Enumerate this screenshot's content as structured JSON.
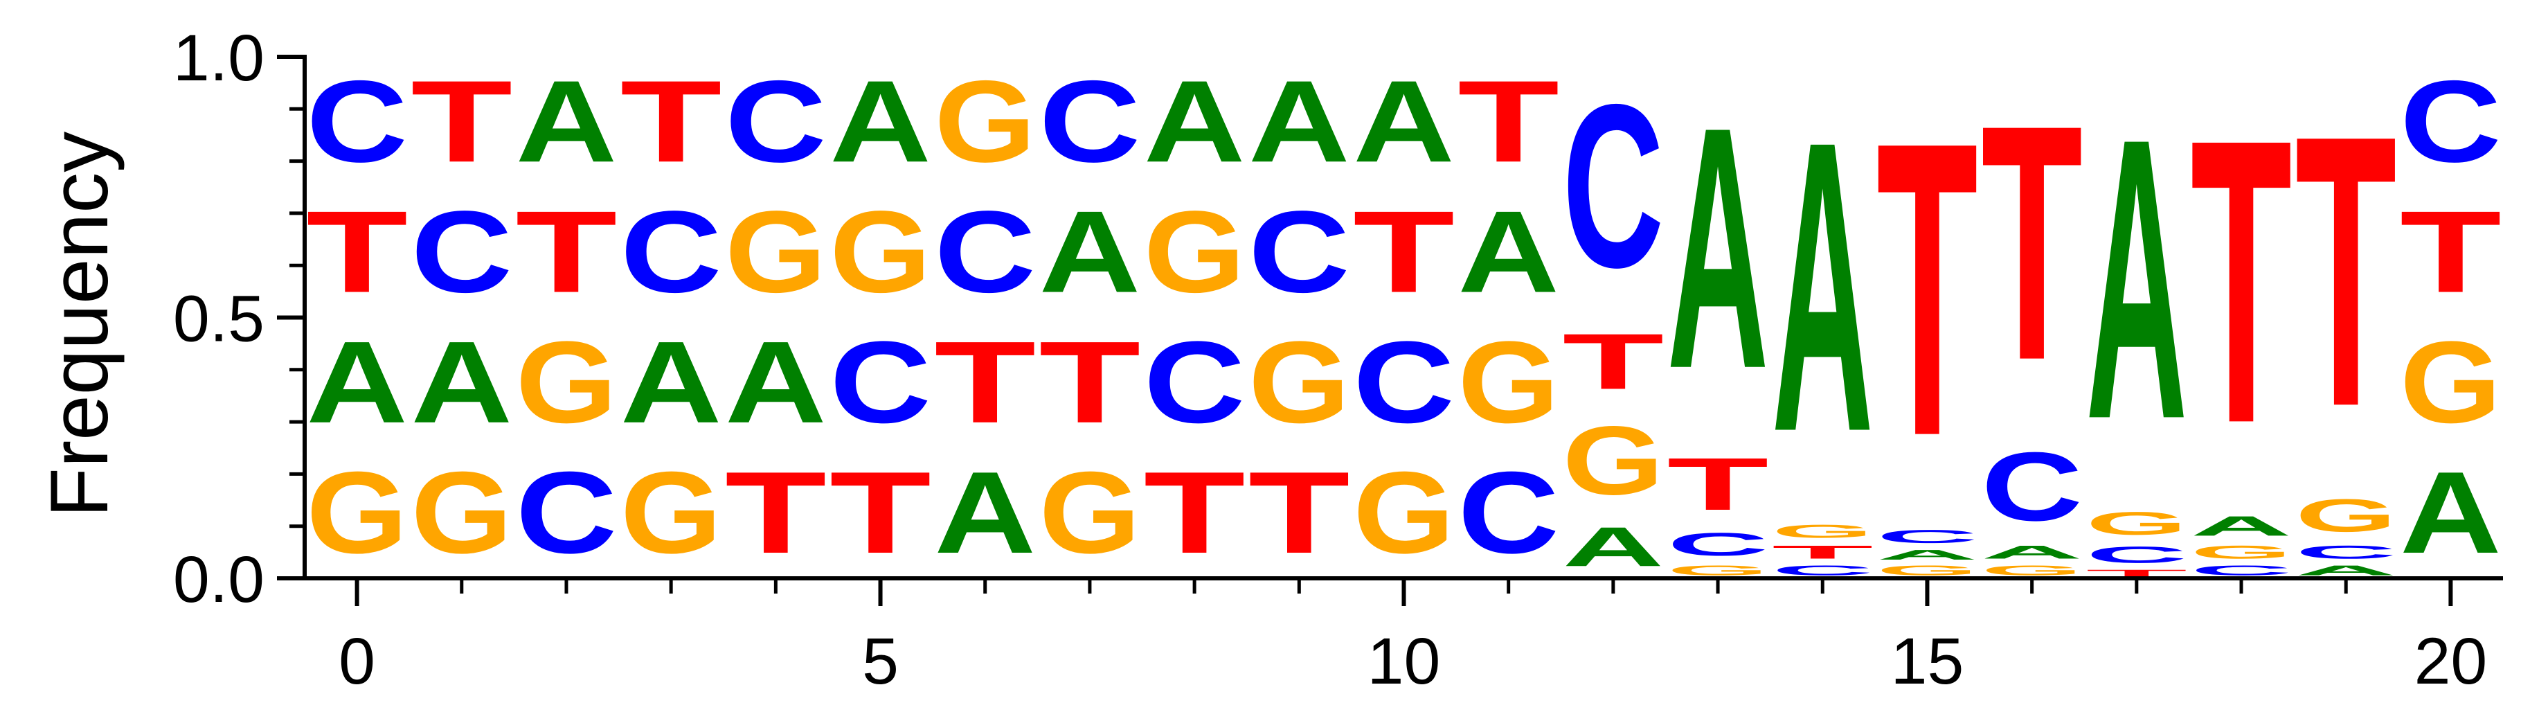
{
  "chart_data": {
    "type": "sequence-logo",
    "ylabel": "Frequency",
    "xlabel": "",
    "title": "",
    "xlim": [
      -0.5,
      20.5
    ],
    "ylim": [
      0,
      1
    ],
    "x_ticks": [
      0,
      5,
      10,
      15,
      20
    ],
    "x_tick_labels": [
      "0",
      "5",
      "10",
      "15",
      "20"
    ],
    "x_minor_ticks": [
      1,
      2,
      3,
      4,
      6,
      7,
      8,
      9,
      11,
      12,
      13,
      14,
      16,
      17,
      18,
      19
    ],
    "y_ticks": [
      0.0,
      0.5,
      1.0
    ],
    "y_tick_labels": [
      "0.0",
      "0.5",
      "1.0"
    ],
    "y_minor_ticks": [
      0.1,
      0.2,
      0.3,
      0.4,
      0.6,
      0.7,
      0.8,
      0.9
    ],
    "grid": false,
    "colors": {
      "A": "#008000",
      "C": "#0000ff",
      "G": "#ffa500",
      "T": "#ff0000"
    },
    "positions": [
      {
        "pos": 0,
        "stack": [
          {
            "letter": "G",
            "freq": 0.25
          },
          {
            "letter": "A",
            "freq": 0.25
          },
          {
            "letter": "T",
            "freq": 0.25
          },
          {
            "letter": "C",
            "freq": 0.25
          }
        ]
      },
      {
        "pos": 1,
        "stack": [
          {
            "letter": "G",
            "freq": 0.25
          },
          {
            "letter": "A",
            "freq": 0.25
          },
          {
            "letter": "C",
            "freq": 0.25
          },
          {
            "letter": "T",
            "freq": 0.25
          }
        ]
      },
      {
        "pos": 2,
        "stack": [
          {
            "letter": "C",
            "freq": 0.25
          },
          {
            "letter": "G",
            "freq": 0.25
          },
          {
            "letter": "T",
            "freq": 0.25
          },
          {
            "letter": "A",
            "freq": 0.25
          }
        ]
      },
      {
        "pos": 3,
        "stack": [
          {
            "letter": "G",
            "freq": 0.25
          },
          {
            "letter": "A",
            "freq": 0.25
          },
          {
            "letter": "C",
            "freq": 0.25
          },
          {
            "letter": "T",
            "freq": 0.25
          }
        ]
      },
      {
        "pos": 4,
        "stack": [
          {
            "letter": "T",
            "freq": 0.25
          },
          {
            "letter": "A",
            "freq": 0.25
          },
          {
            "letter": "G",
            "freq": 0.25
          },
          {
            "letter": "C",
            "freq": 0.25
          }
        ]
      },
      {
        "pos": 5,
        "stack": [
          {
            "letter": "T",
            "freq": 0.25
          },
          {
            "letter": "C",
            "freq": 0.25
          },
          {
            "letter": "G",
            "freq": 0.25
          },
          {
            "letter": "A",
            "freq": 0.25
          }
        ]
      },
      {
        "pos": 6,
        "stack": [
          {
            "letter": "A",
            "freq": 0.25
          },
          {
            "letter": "T",
            "freq": 0.25
          },
          {
            "letter": "C",
            "freq": 0.25
          },
          {
            "letter": "G",
            "freq": 0.25
          }
        ]
      },
      {
        "pos": 7,
        "stack": [
          {
            "letter": "G",
            "freq": 0.25
          },
          {
            "letter": "T",
            "freq": 0.25
          },
          {
            "letter": "A",
            "freq": 0.25
          },
          {
            "letter": "C",
            "freq": 0.25
          }
        ]
      },
      {
        "pos": 8,
        "stack": [
          {
            "letter": "T",
            "freq": 0.25
          },
          {
            "letter": "C",
            "freq": 0.25
          },
          {
            "letter": "G",
            "freq": 0.25
          },
          {
            "letter": "A",
            "freq": 0.25
          }
        ]
      },
      {
        "pos": 9,
        "stack": [
          {
            "letter": "T",
            "freq": 0.25
          },
          {
            "letter": "G",
            "freq": 0.25
          },
          {
            "letter": "C",
            "freq": 0.25
          },
          {
            "letter": "A",
            "freq": 0.25
          }
        ]
      },
      {
        "pos": 10,
        "stack": [
          {
            "letter": "G",
            "freq": 0.25
          },
          {
            "letter": "C",
            "freq": 0.25
          },
          {
            "letter": "T",
            "freq": 0.25
          },
          {
            "letter": "A",
            "freq": 0.25
          }
        ]
      },
      {
        "pos": 11,
        "stack": [
          {
            "letter": "C",
            "freq": 0.25
          },
          {
            "letter": "G",
            "freq": 0.25
          },
          {
            "letter": "A",
            "freq": 0.25
          },
          {
            "letter": "T",
            "freq": 0.25
          }
        ]
      },
      {
        "pos": 12,
        "stack": [
          {
            "letter": "A",
            "freq": 0.12
          },
          {
            "letter": "G",
            "freq": 0.21
          },
          {
            "letter": "T",
            "freq": 0.17
          },
          {
            "letter": "C",
            "freq": 0.5
          }
        ]
      },
      {
        "pos": 13,
        "stack": [
          {
            "letter": "G",
            "freq": 0.03
          },
          {
            "letter": "C",
            "freq": 0.07
          },
          {
            "letter": "T",
            "freq": 0.16
          },
          {
            "letter": "A",
            "freq": 0.74
          }
        ]
      },
      {
        "pos": 14,
        "stack": [
          {
            "letter": "C",
            "freq": 0.03
          },
          {
            "letter": "T",
            "freq": 0.04
          },
          {
            "letter": "G",
            "freq": 0.04
          },
          {
            "letter": "A",
            "freq": 0.89
          }
        ]
      },
      {
        "pos": 15,
        "stack": [
          {
            "letter": "G",
            "freq": 0.03
          },
          {
            "letter": "A",
            "freq": 0.03
          },
          {
            "letter": "C",
            "freq": 0.04
          },
          {
            "letter": "T",
            "freq": 0.9
          }
        ]
      },
      {
        "pos": 16,
        "stack": [
          {
            "letter": "G",
            "freq": 0.03
          },
          {
            "letter": "A",
            "freq": 0.04
          },
          {
            "letter": "C",
            "freq": 0.21
          },
          {
            "letter": "T",
            "freq": 0.72
          }
        ]
      },
      {
        "pos": 17,
        "stack": [
          {
            "letter": "T",
            "freq": 0.02
          },
          {
            "letter": "C",
            "freq": 0.05
          },
          {
            "letter": "G",
            "freq": 0.07
          },
          {
            "letter": "A",
            "freq": 0.86
          }
        ]
      },
      {
        "pos": 18,
        "stack": [
          {
            "letter": "C",
            "freq": 0.03
          },
          {
            "letter": "G",
            "freq": 0.04
          },
          {
            "letter": "A",
            "freq": 0.06
          },
          {
            "letter": "T",
            "freq": 0.87
          }
        ]
      },
      {
        "pos": 19,
        "stack": [
          {
            "letter": "A",
            "freq": 0.03
          },
          {
            "letter": "C",
            "freq": 0.04
          },
          {
            "letter": "G",
            "freq": 0.1
          },
          {
            "letter": "T",
            "freq": 0.83
          }
        ]
      },
      {
        "pos": 20,
        "stack": [
          {
            "letter": "A",
            "freq": 0.25
          },
          {
            "letter": "G",
            "freq": 0.25
          },
          {
            "letter": "T",
            "freq": 0.25
          },
          {
            "letter": "C",
            "freq": 0.25
          }
        ]
      }
    ]
  }
}
